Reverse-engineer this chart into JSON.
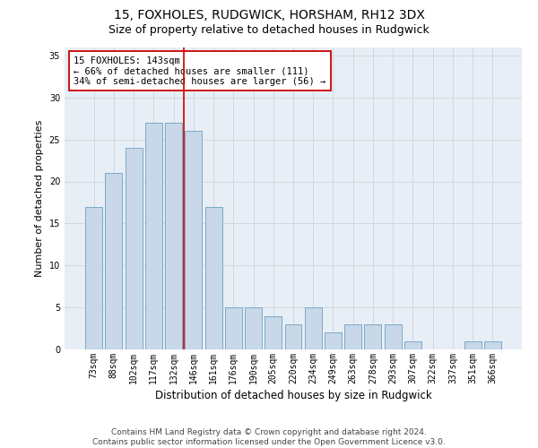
{
  "title": "15, FOXHOLES, RUDGWICK, HORSHAM, RH12 3DX",
  "subtitle": "Size of property relative to detached houses in Rudgwick",
  "xlabel": "Distribution of detached houses by size in Rudgwick",
  "ylabel": "Number of detached properties",
  "categories": [
    "73sqm",
    "88sqm",
    "102sqm",
    "117sqm",
    "132sqm",
    "146sqm",
    "161sqm",
    "176sqm",
    "190sqm",
    "205sqm",
    "220sqm",
    "234sqm",
    "249sqm",
    "263sqm",
    "278sqm",
    "293sqm",
    "307sqm",
    "322sqm",
    "337sqm",
    "351sqm",
    "366sqm"
  ],
  "values": [
    17,
    21,
    24,
    27,
    27,
    26,
    17,
    5,
    5,
    4,
    3,
    5,
    2,
    3,
    3,
    3,
    1,
    0,
    0,
    1,
    1
  ],
  "bar_color": "#c8d8e8",
  "bar_edge_color": "#7aaac8",
  "vline_color": "#cc0000",
  "vline_x": 4.5,
  "annotation_text": "15 FOXHOLES: 143sqm\n← 66% of detached houses are smaller (111)\n34% of semi-detached houses are larger (56) →",
  "annotation_box_color": "#ffffff",
  "annotation_box_edge_color": "#cc0000",
  "ylim": [
    0,
    36
  ],
  "yticks": [
    0,
    5,
    10,
    15,
    20,
    25,
    30,
    35
  ],
  "grid_color": "#d0d8e0",
  "bg_color": "#e8eef5",
  "footnote": "Contains HM Land Registry data © Crown copyright and database right 2024.\nContains public sector information licensed under the Open Government Licence v3.0.",
  "title_fontsize": 10,
  "subtitle_fontsize": 9,
  "xlabel_fontsize": 8.5,
  "ylabel_fontsize": 8,
  "tick_fontsize": 7,
  "annot_fontsize": 7.5,
  "footnote_fontsize": 6.5
}
